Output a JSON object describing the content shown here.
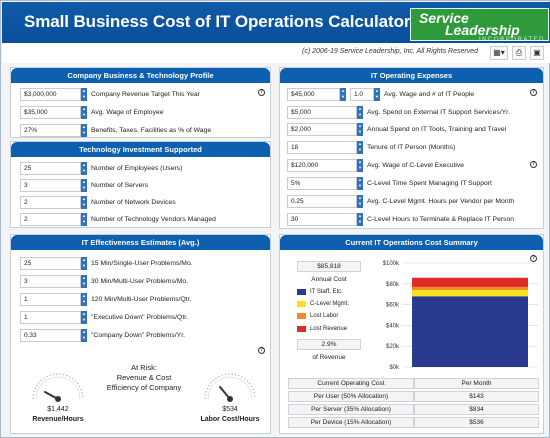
{
  "header": {
    "title": "Small Business Cost of IT Operations Calculator™",
    "logo_line1": "Service",
    "logo_line2": "Leadership",
    "logo_line3": "INCORPORATED",
    "copyright": "(c) 2006-19 Service Leadership, Inc. All Rights Reserved"
  },
  "panels": {
    "company": {
      "title": "Company Business & Technology Profile",
      "rows": [
        {
          "value": "$3,000,000",
          "label": "Company Revenue Target This Year"
        },
        {
          "value": "$35,000",
          "label": "Avg. Wage of Employee"
        },
        {
          "value": "27%",
          "label": "Benefits, Taxes, Facilities as % of Wage"
        }
      ]
    },
    "tech": {
      "title": "Technology Investment Supported",
      "rows": [
        {
          "value": "25",
          "label": "Number of Employees (Users)"
        },
        {
          "value": "3",
          "label": "Number of Servers"
        },
        {
          "value": "2",
          "label": "Number of Network Devices"
        },
        {
          "value": "2",
          "label": "Number of Technology Vendors Managed"
        }
      ]
    },
    "effectiveness": {
      "title": "IT Effectiveness Estimates (Avg.)",
      "rows": [
        {
          "value": "25",
          "label": "15 Min/Single-User Problems/Mo."
        },
        {
          "value": "3",
          "label": "30 Min/Multi-User Problems/Mo."
        },
        {
          "value": "1",
          "label": "120 Min/Multi-User Problems/Qtr."
        },
        {
          "value": "1",
          "label": "\"Executive Down\" Problems/Qtr."
        },
        {
          "value": "0.33",
          "label": "\"Company Down\" Problems/Yr."
        }
      ],
      "at_risk_1": "At Risk:",
      "at_risk_2": "Revenue & Cost",
      "at_risk_3": "Efficiency of Company",
      "gauge_left_value": "$1,442",
      "gauge_left_label": "Revenue/Hours",
      "gauge_right_value": "$534",
      "gauge_right_label": "Labor Cost/Hours"
    },
    "expenses": {
      "title": "IT Operating Expenses",
      "first_value": "$45,000",
      "first_value_b": "1.0",
      "rows": [
        {
          "value": "",
          "label": "Avg. Wage and # of IT People"
        },
        {
          "value": "$5,000",
          "label": "Avg. Spend on External IT Support Services/Yr."
        },
        {
          "value": "$2,000",
          "label": "Annual Spend on IT Tools, Training and Travel"
        },
        {
          "value": "18",
          "label": "Tenure of IT Person (Months)"
        },
        {
          "value": "$120,000",
          "label": "Avg. Wage of C-Level Executive"
        },
        {
          "value": "5%",
          "label": "C-Level Time Spent Managing IT Support"
        },
        {
          "value": "0.25",
          "label": "Avg. C-Level Mgmt. Hours per Vendor per Month"
        },
        {
          "value": "30",
          "label": "C-Level Hours to Terminate & Replace IT Person"
        }
      ]
    },
    "summary": {
      "title": "Current IT Operations Cost Summary",
      "annual_value": "$85,818",
      "annual_label": "Annual Cost",
      "pct_value": "2.9%",
      "pct_label": "of Revenue",
      "table": {
        "header": [
          "Current Operating Cost",
          "Per Month"
        ],
        "rows": [
          [
            "Per User (50% Allocation)",
            "$143"
          ],
          [
            "Per Server (35% Allocation)",
            "$834"
          ],
          [
            "Per Device (15% Allocation)",
            "$536"
          ]
        ]
      }
    }
  },
  "chart_data": {
    "type": "bar",
    "stacked": true,
    "categories": [
      ""
    ],
    "series": [
      {
        "name": "IT Staff, Etc.",
        "values": [
          68000
        ],
        "color": "#2a3a8f"
      },
      {
        "name": "C-Level Mgmt.",
        "values": [
          6000
        ],
        "color": "#f5e51a"
      },
      {
        "name": "Lost Labor",
        "values": [
          3000
        ],
        "color": "#f08a2d"
      },
      {
        "name": "Lost Revenue",
        "values": [
          8800
        ],
        "color": "#e02a2a"
      }
    ],
    "yticks": [
      "$0k",
      "$20k",
      "$40k",
      "$60k",
      "$80k",
      "$100k"
    ],
    "ylim": [
      0,
      100000
    ]
  }
}
